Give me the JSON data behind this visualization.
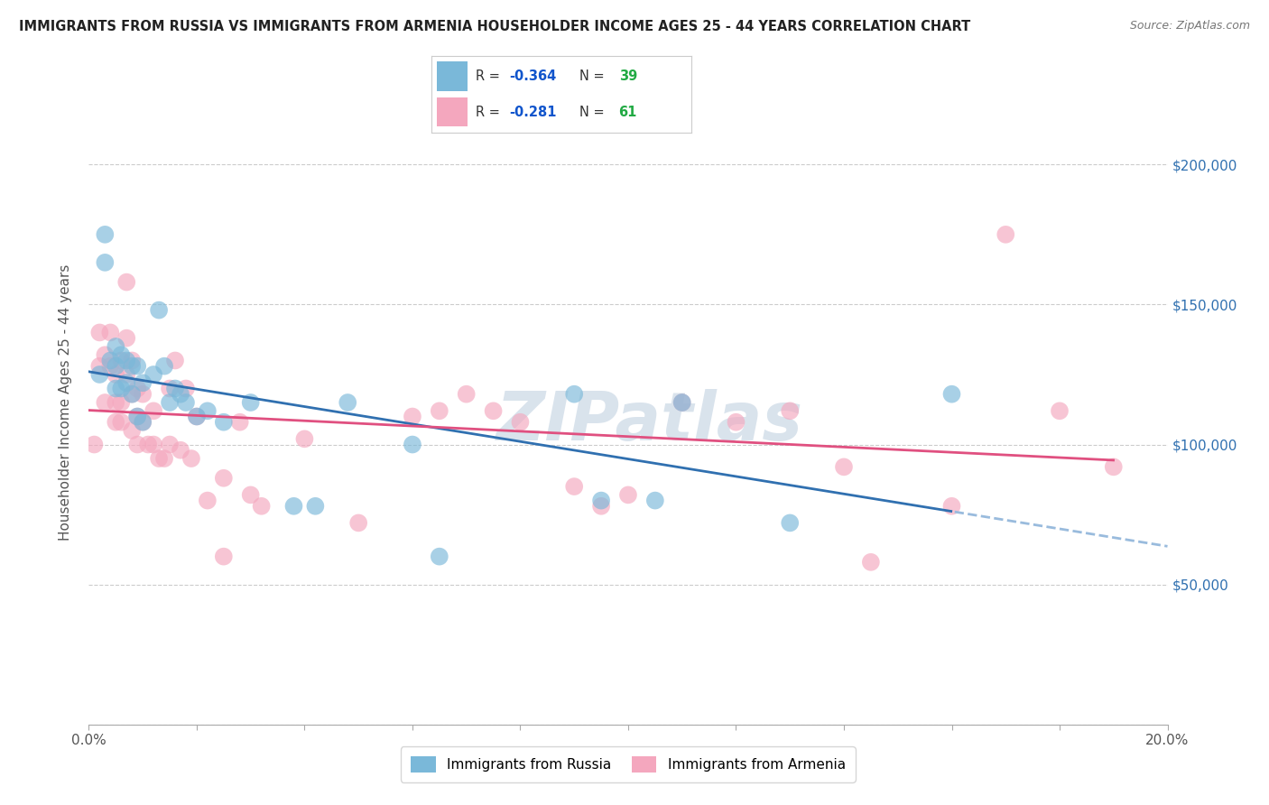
{
  "title": "IMMIGRANTS FROM RUSSIA VS IMMIGRANTS FROM ARMENIA HOUSEHOLDER INCOME AGES 25 - 44 YEARS CORRELATION CHART",
  "source": "Source: ZipAtlas.com",
  "ylabel": "Householder Income Ages 25 - 44 years",
  "xlim": [
    0.0,
    0.2
  ],
  "ylim": [
    0,
    230000
  ],
  "ytick_positions": [
    0,
    50000,
    100000,
    150000,
    200000
  ],
  "ytick_labels": [
    "",
    "$50,000",
    "$100,000",
    "$150,000",
    "$200,000"
  ],
  "xtick_positions": [
    0.0,
    0.02,
    0.04,
    0.06,
    0.08,
    0.1,
    0.12,
    0.14,
    0.16,
    0.18,
    0.2
  ],
  "xtick_labels": [
    "0.0%",
    "",
    "",
    "",
    "",
    "",
    "",
    "",
    "",
    "",
    "20.0%"
  ],
  "russia_color": "#7ab8d9",
  "armenia_color": "#f4a7be",
  "russia_line_color": "#3070b0",
  "armenia_line_color": "#e05080",
  "russia_dash_color": "#99bbdd",
  "russia_R": "-0.364",
  "russia_N": "39",
  "armenia_R": "-0.281",
  "armenia_N": "61",
  "R_label_color": "#1155cc",
  "N_label_color": "#22aa44",
  "legend_text_color": "#333333",
  "russia_x": [
    0.002,
    0.003,
    0.003,
    0.004,
    0.005,
    0.005,
    0.005,
    0.006,
    0.006,
    0.007,
    0.007,
    0.008,
    0.008,
    0.009,
    0.009,
    0.01,
    0.01,
    0.012,
    0.013,
    0.014,
    0.015,
    0.016,
    0.017,
    0.018,
    0.02,
    0.022,
    0.025,
    0.03,
    0.038,
    0.042,
    0.048,
    0.06,
    0.065,
    0.09,
    0.095,
    0.105,
    0.11,
    0.13,
    0.16
  ],
  "russia_y": [
    125000,
    175000,
    165000,
    130000,
    120000,
    135000,
    128000,
    132000,
    120000,
    130000,
    122000,
    128000,
    118000,
    128000,
    110000,
    122000,
    108000,
    125000,
    148000,
    128000,
    115000,
    120000,
    118000,
    115000,
    110000,
    112000,
    108000,
    115000,
    78000,
    78000,
    115000,
    100000,
    60000,
    118000,
    80000,
    80000,
    115000,
    72000,
    118000
  ],
  "russia_size": [
    200,
    220,
    200,
    200,
    200,
    200,
    200,
    200,
    200,
    200,
    200,
    200,
    200,
    200,
    200,
    200,
    200,
    200,
    200,
    200,
    200,
    200,
    200,
    200,
    200,
    200,
    200,
    200,
    200,
    200,
    200,
    200,
    200,
    200,
    200,
    200,
    200,
    200,
    200
  ],
  "armenia_x": [
    0.001,
    0.002,
    0.002,
    0.003,
    0.003,
    0.004,
    0.004,
    0.005,
    0.005,
    0.005,
    0.006,
    0.006,
    0.006,
    0.007,
    0.007,
    0.007,
    0.008,
    0.008,
    0.008,
    0.009,
    0.009,
    0.009,
    0.01,
    0.01,
    0.011,
    0.012,
    0.012,
    0.013,
    0.014,
    0.015,
    0.015,
    0.016,
    0.017,
    0.018,
    0.019,
    0.02,
    0.022,
    0.025,
    0.025,
    0.028,
    0.03,
    0.032,
    0.04,
    0.05,
    0.06,
    0.065,
    0.07,
    0.075,
    0.08,
    0.09,
    0.095,
    0.1,
    0.11,
    0.12,
    0.13,
    0.14,
    0.145,
    0.16,
    0.17,
    0.18,
    0.19
  ],
  "armenia_y": [
    100000,
    140000,
    128000,
    132000,
    115000,
    140000,
    128000,
    125000,
    115000,
    108000,
    130000,
    115000,
    108000,
    158000,
    138000,
    125000,
    130000,
    118000,
    105000,
    120000,
    110000,
    100000,
    118000,
    108000,
    100000,
    112000,
    100000,
    95000,
    95000,
    120000,
    100000,
    130000,
    98000,
    120000,
    95000,
    110000,
    80000,
    60000,
    88000,
    108000,
    82000,
    78000,
    102000,
    72000,
    110000,
    112000,
    118000,
    112000,
    108000,
    85000,
    78000,
    82000,
    115000,
    108000,
    112000,
    92000,
    58000,
    78000,
    175000,
    112000,
    92000
  ],
  "armenia_size": [
    400,
    200,
    200,
    200,
    200,
    200,
    200,
    200,
    200,
    200,
    200,
    200,
    200,
    200,
    200,
    200,
    200,
    200,
    200,
    200,
    200,
    200,
    200,
    200,
    200,
    200,
    200,
    200,
    200,
    200,
    200,
    200,
    200,
    200,
    200,
    200,
    200,
    200,
    200,
    200,
    200,
    200,
    200,
    200,
    200,
    200,
    200,
    200,
    200,
    200,
    200,
    200,
    200,
    200,
    200,
    200,
    200,
    200,
    200,
    200,
    200
  ],
  "watermark": "ZIPatlas",
  "background_color": "#ffffff",
  "grid_color": "#cccccc"
}
